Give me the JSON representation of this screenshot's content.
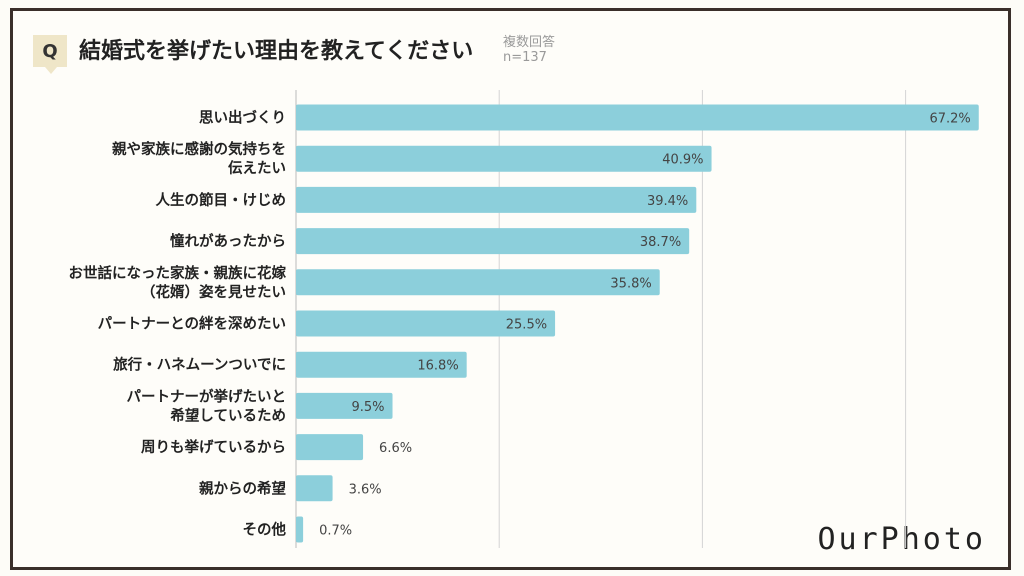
{
  "header": {
    "q_label": "Q",
    "title": "結婚式を挙げたい理由を教えてください",
    "note_line1": "複数回答",
    "note_line2": "n=137"
  },
  "logo": {
    "text": "OurPhoto"
  },
  "chart_data": {
    "type": "bar",
    "orientation": "horizontal",
    "title": "結婚式を挙げたい理由を教えてください",
    "categories": [
      [
        "思い出づくり"
      ],
      [
        "親や家族に感謝の気持ちを",
        "伝えたい"
      ],
      [
        "人生の節目・けじめ"
      ],
      [
        "憧れがあったから"
      ],
      [
        "お世話になった家族・親族に花嫁",
        "（花婿）姿を見せたい"
      ],
      [
        "パートナーとの絆を深めたい"
      ],
      [
        "旅行・ハネムーンついでに"
      ],
      [
        "パートナーが挙げたいと",
        "希望しているため"
      ],
      [
        "周りも挙げているから"
      ],
      [
        "親からの希望"
      ],
      [
        "その他"
      ]
    ],
    "values": [
      67.2,
      40.9,
      39.4,
      38.7,
      35.8,
      25.5,
      16.8,
      9.5,
      6.6,
      3.6,
      0.7
    ],
    "value_labels": [
      "67.2%",
      "40.9%",
      "39.4%",
      "38.7%",
      "35.8%",
      "25.5%",
      "16.8%",
      "9.5%",
      "6.6%",
      "3.6%",
      "0.7%"
    ],
    "xlim": [
      0,
      70
    ],
    "grid_values": [
      20,
      40,
      60
    ],
    "bar_color": "#8ccfdb",
    "grid_color": "#d4d4d4",
    "legend": "none"
  }
}
